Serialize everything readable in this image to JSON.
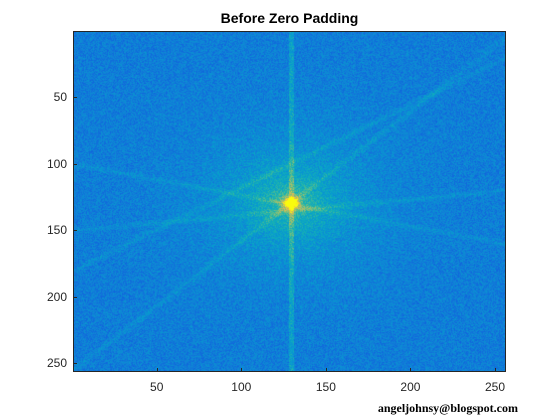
{
  "chart_data": {
    "type": "heatmap",
    "title": "Before Zero Padding",
    "xlabel": "",
    "ylabel": "",
    "x_ticks": [
      50,
      100,
      150,
      200,
      250
    ],
    "y_ticks": [
      50,
      100,
      150,
      200,
      250
    ],
    "xlim": [
      0.5,
      256.5
    ],
    "ylim": [
      0.5,
      256.5
    ],
    "y_direction": "reverse",
    "grid": false,
    "colormap": "parula",
    "grid_size": [
      256,
      256
    ],
    "peak_center": [
      129,
      129
    ],
    "features": {
      "vertical_line_x": 129,
      "diagonal_streaks": [
        {
          "from": [
            0,
            180
          ],
          "to": [
            256,
            20
          ]
        },
        {
          "from": [
            0,
            255
          ],
          "to": [
            256,
            5
          ]
        },
        {
          "from": [
            0,
            100
          ],
          "to": [
            256,
            160
          ]
        },
        {
          "from": [
            0,
            150
          ],
          "to": [
            256,
            120
          ]
        }
      ]
    }
  },
  "watermark": "angeljohnsy@blogspot.com",
  "colors": {
    "background_low": "#1f83d9",
    "mid": "#3cb6b0",
    "high": "#a5be52",
    "peak": "#f9e126",
    "axis": "#262626"
  }
}
